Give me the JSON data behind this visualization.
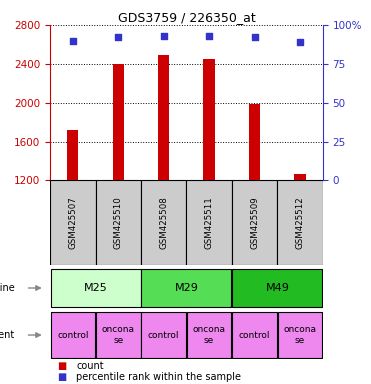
{
  "title": "GDS3759 / 226350_at",
  "samples": [
    "GSM425507",
    "GSM425510",
    "GSM425508",
    "GSM425511",
    "GSM425509",
    "GSM425512"
  ],
  "counts": [
    1720,
    2400,
    2490,
    2450,
    1990,
    1270
  ],
  "percentile_ranks": [
    90,
    92,
    93,
    93,
    92,
    89
  ],
  "ylim_left": [
    1200,
    2800
  ],
  "ylim_right": [
    0,
    100
  ],
  "yticks_left": [
    1200,
    1600,
    2000,
    2400,
    2800
  ],
  "yticks_right": [
    0,
    25,
    50,
    75,
    100
  ],
  "bar_color": "#cc0000",
  "dot_color": "#3333cc",
  "cell_lines": [
    {
      "label": "M25",
      "span": [
        0,
        2
      ],
      "color": "#ccffcc"
    },
    {
      "label": "M29",
      "span": [
        2,
        4
      ],
      "color": "#55dd55"
    },
    {
      "label": "M49",
      "span": [
        4,
        6
      ],
      "color": "#22bb22"
    }
  ],
  "agents": [
    {
      "label": "control",
      "span": [
        0,
        1
      ],
      "color": "#ee88ee"
    },
    {
      "label": "oncona\nse",
      "span": [
        1,
        2
      ],
      "color": "#ee88ee"
    },
    {
      "label": "control",
      "span": [
        2,
        3
      ],
      "color": "#ee88ee"
    },
    {
      "label": "oncona\nse",
      "span": [
        3,
        4
      ],
      "color": "#ee88ee"
    },
    {
      "label": "control",
      "span": [
        4,
        5
      ],
      "color": "#ee88ee"
    },
    {
      "label": "oncona\nse",
      "span": [
        5,
        6
      ],
      "color": "#ee88ee"
    }
  ],
  "sample_box_color": "#cccccc",
  "left_axis_color": "#cc0000",
  "right_axis_color": "#3333cc",
  "figsize": [
    3.71,
    3.84
  ],
  "dpi": 100
}
